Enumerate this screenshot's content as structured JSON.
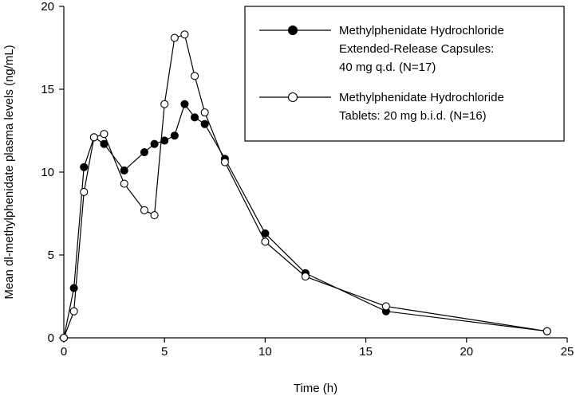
{
  "chart_data": {
    "type": "line",
    "xlabel": "Time (h)",
    "ylabel": "Mean dl-methylphenidate plasma levels (ng/mL)",
    "xlim": [
      0,
      25
    ],
    "ylim": [
      0,
      20
    ],
    "xticks": [
      0,
      5,
      10,
      15,
      20,
      25
    ],
    "yticks": [
      0,
      5,
      10,
      15,
      20
    ],
    "grid": false,
    "legend_position": "top-right",
    "series": [
      {
        "name_lines": [
          "Methylphenidate Hydrochloride",
          "Extended-Release Capsules:",
          "40 mg q.d. (N=17)"
        ],
        "marker": "filled-circle",
        "x": [
          0,
          0.5,
          1,
          1.5,
          2,
          3,
          4,
          4.5,
          5,
          5.5,
          6,
          6.5,
          7,
          8,
          10,
          12,
          16,
          24
        ],
        "y": [
          0,
          3.0,
          10.3,
          12.1,
          11.7,
          10.1,
          11.2,
          11.7,
          11.9,
          12.2,
          14.1,
          13.3,
          12.9,
          10.8,
          6.3,
          3.9,
          1.6,
          0.4
        ]
      },
      {
        "name_lines": [
          "Methylphenidate Hydrochloride",
          "Tablets: 20 mg b.i.d. (N=16)"
        ],
        "marker": "open-circle",
        "x": [
          0,
          0.5,
          1,
          1.5,
          2,
          3,
          4,
          4.5,
          5,
          5.5,
          6,
          6.5,
          7,
          8,
          10,
          12,
          16,
          24
        ],
        "y": [
          0,
          1.6,
          8.8,
          12.1,
          12.3,
          9.3,
          7.7,
          7.4,
          14.1,
          18.1,
          18.3,
          15.8,
          13.6,
          10.6,
          5.8,
          3.7,
          1.9,
          0.4
        ]
      }
    ]
  }
}
